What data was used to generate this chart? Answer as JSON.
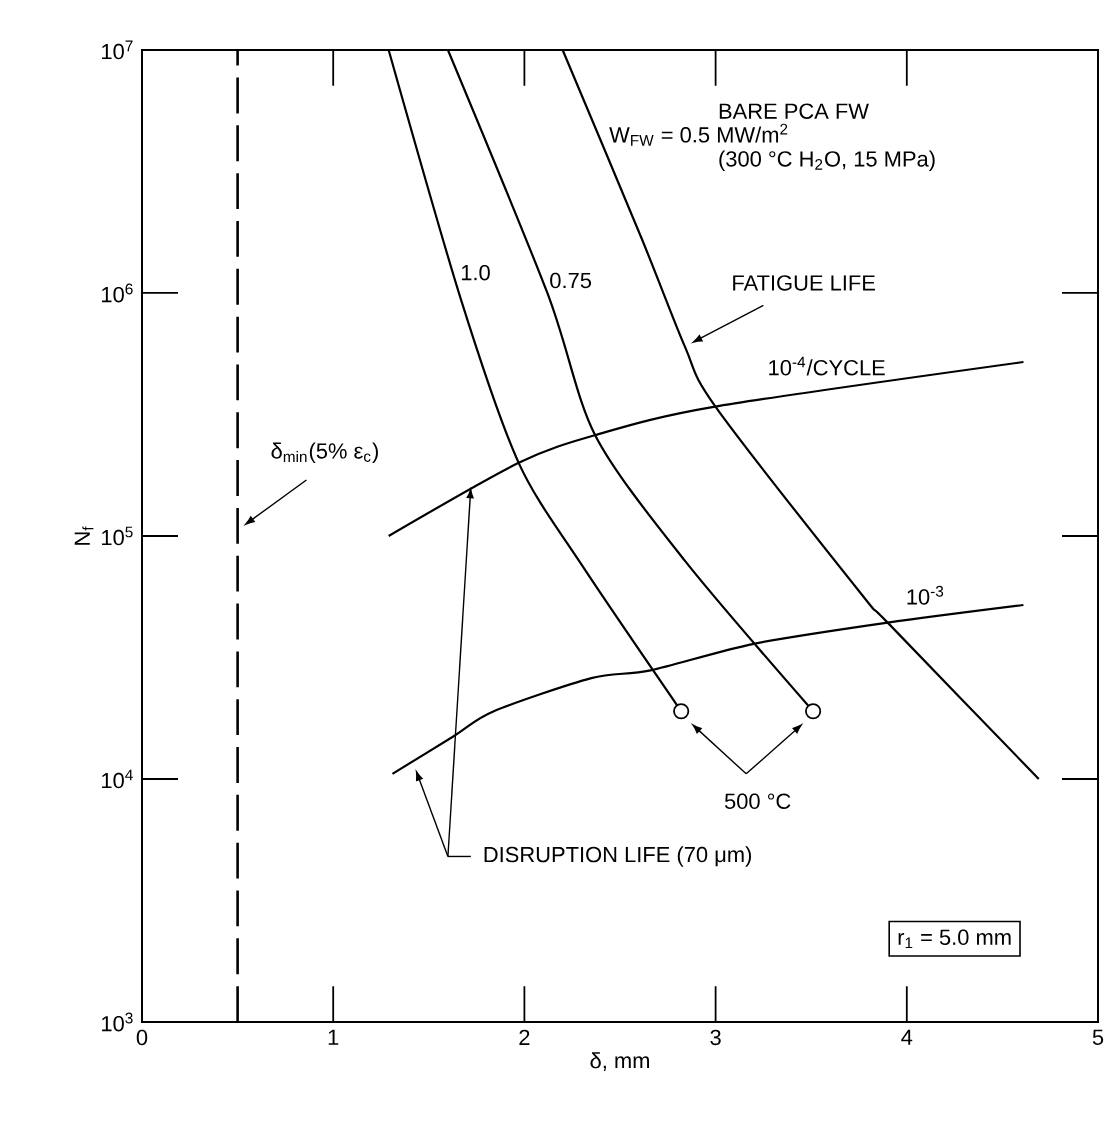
{
  "chart_data": {
    "type": "line",
    "xlabel": "δ, mm",
    "ylabel": "N$_{f}$",
    "xlim": [
      0,
      5
    ],
    "xticks": [
      0,
      1,
      2,
      3,
      4,
      5
    ],
    "ylim": [
      1000,
      10000000
    ],
    "log": "y",
    "yticks": [
      {
        "value": 1000,
        "label": "10$^{3}$"
      },
      {
        "value": 10000,
        "label": "10$^{4}$"
      },
      {
        "value": 100000,
        "label": "10$^{5}$"
      },
      {
        "value": 1000000,
        "label": "10$^{6}$"
      },
      {
        "value": 10000000,
        "label": "10$^{7}$"
      }
    ],
    "series": [
      {
        "name": "W$_{FW}$ = 0.5 MW/m$^{2}$",
        "color": "#000000",
        "x": [
          2.2,
          2.61,
          2.84,
          3.0,
          3.76,
          3.9,
          4.69
        ],
        "values": [
          10000000,
          1700000,
          600000,
          340000,
          58000,
          44000,
          10000
        ]
      },
      {
        "name": "0.75",
        "color": "#000000",
        "x": [
          1.6,
          2.12,
          2.37,
          2.84,
          3.51
        ],
        "values": [
          10000000,
          1000000,
          260000,
          79000,
          19000
        ]
      },
      {
        "name": "1.0",
        "color": "#000000",
        "x": [
          1.29,
          1.67,
          1.97,
          2.3,
          2.82
        ],
        "values": [
          10000000,
          930000,
          200000,
          76000,
          19000
        ]
      },
      {
        "name": "10$^{-4}$/CYCLE",
        "color": "#000000",
        "x": [
          1.29,
          1.97,
          2.37,
          2.99,
          4.61
        ],
        "values": [
          100000,
          200000,
          260000,
          340000,
          520000
        ]
      },
      {
        "name": "10$^{-3}$",
        "color": "#000000",
        "x": [
          1.31,
          1.63,
          1.84,
          2.35,
          2.66,
          3.2,
          3.9,
          4.61
        ],
        "values": [
          10500,
          15000,
          19000,
          26000,
          28000,
          36000,
          44000,
          52000
        ]
      },
      {
        "type": "scatter",
        "marker": "circle",
        "color": "#000000",
        "x": [
          2.82,
          3.51
        ],
        "values": [
          19000,
          19000
        ]
      }
    ],
    "ref_lines": [
      {
        "axis": "x",
        "value": 0.5,
        "label": "δ$_{min}$(5% ε$_{c}$)",
        "line_style": "dashed",
        "color": "#000000"
      }
    ],
    "annotations": [
      "BARE PCA FW",
      "(300 °C H$_{2}$O, 15 MPa)",
      "FATIGUE LIFE",
      "500 °C",
      "DISRUPTION LIFE (70 μm)",
      "r$_{1}$ = 5.0 mm"
    ]
  }
}
